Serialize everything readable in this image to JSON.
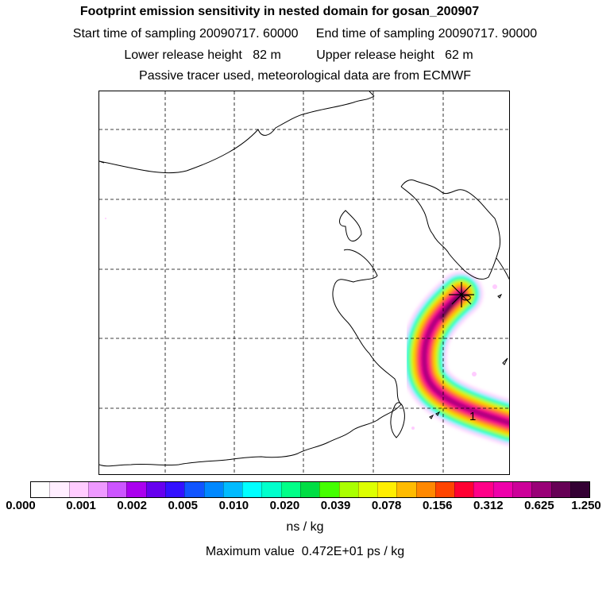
{
  "header": {
    "title": "Footprint emission sensitivity in nested domain for gosan_200907",
    "sampling": "Start time of sampling 20090717. 60000     End time of sampling 20090717. 90000",
    "release": "Lower release height   82 m          Upper release height   62 m",
    "tracer": "Passive tracer used, meteorological data are from ECMWF"
  },
  "map": {
    "marker_label": "1",
    "plume_colors": [
      "#4b004b",
      "#a0007a",
      "#ff0099",
      "#ff3344",
      "#ff9900",
      "#ffdd00",
      "#aaff00",
      "#00ff99",
      "#00ffff",
      "#ffccff"
    ]
  },
  "colorbar": {
    "colors": [
      "#ffffff",
      "#ffeeff",
      "#ffccff",
      "#ee99ff",
      "#cc55ff",
      "#aa00ee",
      "#6600ee",
      "#3311ff",
      "#1155ff",
      "#0088ff",
      "#00bbff",
      "#00ffff",
      "#00ffcc",
      "#00ff88",
      "#00dd44",
      "#44ff00",
      "#aaff00",
      "#ddff00",
      "#ffee00",
      "#ffbb00",
      "#ff8800",
      "#ff4400",
      "#ff0033",
      "#ff0088",
      "#ee00aa",
      "#cc0099",
      "#990077",
      "#660055",
      "#330033"
    ],
    "ticks": [
      "0.000",
      "0.001",
      "0.002",
      "0.005",
      "0.010",
      "0.020",
      "0.039",
      "0.078",
      "0.156",
      "0.312",
      "0.625",
      "1.250"
    ]
  },
  "units": "ns / kg",
  "max_value": "Maximum value  0.472E+01 ps / kg"
}
